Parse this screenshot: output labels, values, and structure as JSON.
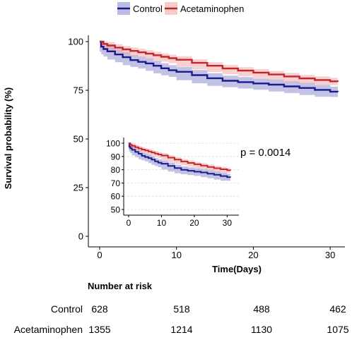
{
  "chart_data": {
    "type": "line",
    "subtype": "kaplan-meier",
    "title": "",
    "xlabel": "Time(Days)",
    "ylabel": "Survival probability (%)",
    "xlim": [
      0,
      31
    ],
    "ylim": [
      0,
      100
    ],
    "x_ticks": [
      0,
      10,
      20,
      30
    ],
    "y_ticks": [
      0,
      25,
      50,
      75,
      100
    ],
    "grid": false,
    "legend_position": "top",
    "annotation": "p = 0.0014",
    "series": [
      {
        "name": "Control",
        "color": "#1a1a8c",
        "band_color": "#8f8fd0",
        "x": [
          0,
          0.2,
          0.5,
          1,
          2,
          3,
          4,
          5,
          6,
          7,
          8,
          9,
          10,
          12,
          14,
          16,
          18,
          20,
          22,
          24,
          26,
          28,
          30,
          31
        ],
        "y": [
          100,
          97.4,
          96.2,
          95,
          93.4,
          92,
          90.5,
          89.6,
          88.8,
          87.6,
          86.3,
          85.3,
          84.5,
          82.8,
          81.2,
          79.9,
          79.2,
          78.5,
          77.9,
          77,
          76.2,
          75.2,
          74.3,
          74.2
        ],
        "ci_width": 2.6
      },
      {
        "name": "Acetaminophen",
        "color": "#c0272d",
        "band_color": "#f0aaa8",
        "x": [
          0,
          0.5,
          1,
          2,
          3,
          4,
          5,
          6,
          7,
          8,
          9,
          10,
          12,
          14,
          16,
          18,
          20,
          22,
          24,
          26,
          28,
          30,
          31
        ],
        "y": [
          100,
          98.8,
          98,
          96.9,
          96,
          95.2,
          94.5,
          93.8,
          93,
          92.2,
          91.5,
          90.7,
          89.1,
          87.6,
          86.2,
          85.1,
          84.1,
          83.1,
          82.1,
          81.1,
          80.3,
          79.6,
          79.4
        ],
        "ci_width": 1.8
      }
    ],
    "inset": {
      "xlim": [
        0,
        31
      ],
      "ylim": [
        50,
        100
      ],
      "x_ticks": [
        0,
        10,
        20,
        30
      ],
      "y_ticks": [
        50,
        60,
        70,
        80,
        90,
        100
      ],
      "grid": true
    },
    "risk_table": {
      "title": "Number at risk",
      "times": [
        0,
        10,
        20,
        30
      ],
      "rows": [
        {
          "label": "Control",
          "values": [
            628,
            518,
            488,
            462
          ]
        },
        {
          "label": "Acetaminophen",
          "values": [
            1355,
            1214,
            1130,
            1075
          ]
        }
      ]
    }
  }
}
